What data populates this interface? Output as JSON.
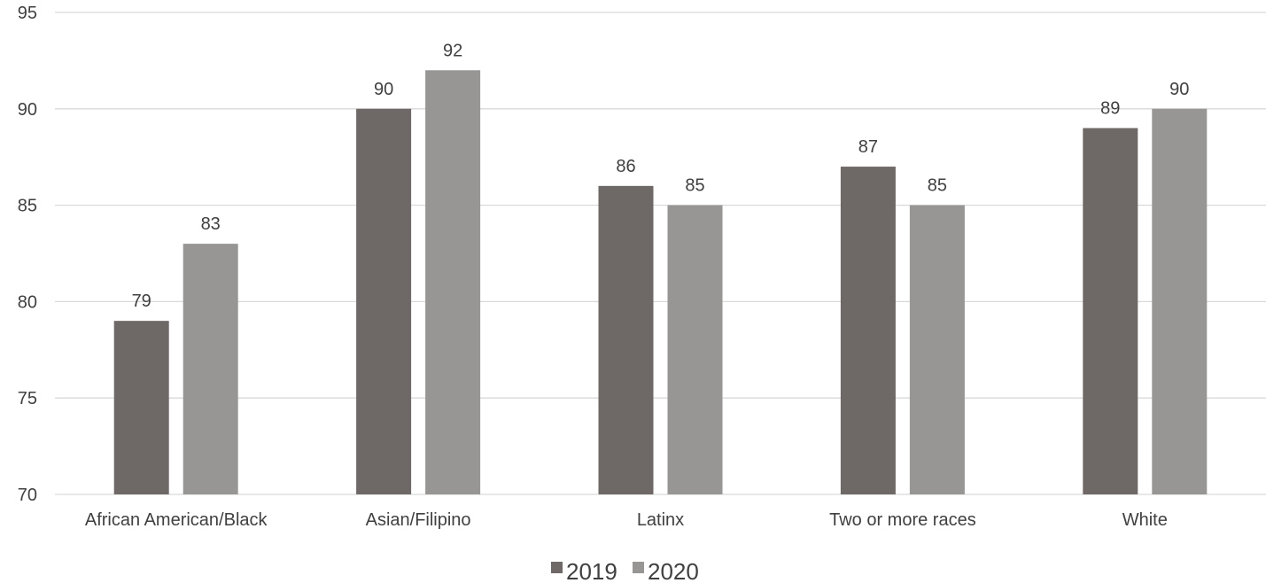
{
  "chart_data": {
    "type": "bar",
    "categories": [
      "African American/Black",
      "Asian/Filipino",
      "Latinx",
      "Two or more races",
      "White"
    ],
    "series": [
      {
        "name": "2019",
        "values": [
          79,
          90,
          86,
          87,
          89
        ],
        "color": "#6e6867"
      },
      {
        "name": "2020",
        "values": [
          83,
          92,
          85,
          85,
          90
        ],
        "color": "#979695"
      }
    ],
    "ylim": [
      70,
      95
    ],
    "yticks": [
      70,
      75,
      80,
      85,
      90,
      95
    ],
    "grid": true,
    "legend_position": "bottom-center",
    "data_labels": true
  }
}
